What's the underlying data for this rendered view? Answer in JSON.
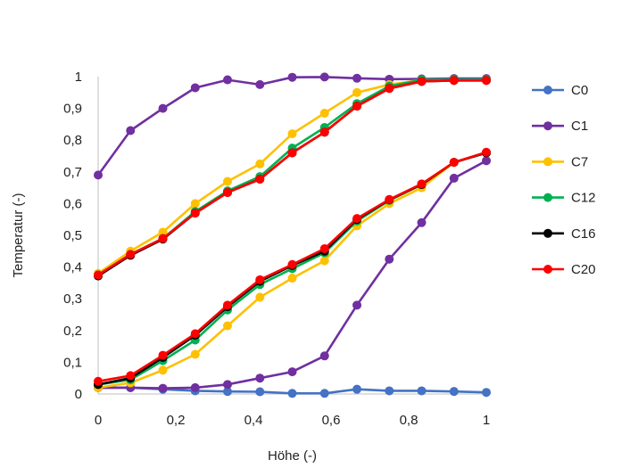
{
  "chart_data": {
    "type": "line",
    "xlabel": "Höhe (-)",
    "ylabel": "Temperatur (-)",
    "xlim": [
      0,
      1
    ],
    "ylim": [
      0,
      1
    ],
    "x_ticks": [
      "0",
      "0,2",
      "0,4",
      "0,6",
      "0,8",
      "1"
    ],
    "y_ticks": [
      "0",
      "0,1",
      "0,2",
      "0,3",
      "0,4",
      "0,5",
      "0,6",
      "0,7",
      "0,8",
      "0,9",
      "1"
    ],
    "grid": false,
    "legend_position": "right",
    "x": [
      0,
      0.0833,
      0.1667,
      0.25,
      0.3333,
      0.4167,
      0.5,
      0.5833,
      0.6667,
      0.75,
      0.8333,
      0.9167,
      1
    ],
    "series": [
      {
        "name": "C0",
        "color": "#4472C4",
        "values": [
          0.02,
          0.02,
          0.015,
          0.01,
          0.008,
          0.007,
          0.002,
          0.002,
          0.015,
          0.01,
          0.01,
          0.008,
          0.005
        ]
      },
      {
        "name": "C1",
        "color": "#7030A0",
        "values": [
          0.69,
          0.83,
          0.9,
          0.965,
          0.99,
          0.975,
          0.998,
          0.999,
          0.995,
          0.992,
          0.993,
          0.994,
          0.994
        ]
      },
      {
        "name": "C1",
        "color": "#7030A0",
        "values": [
          0.02,
          0.02,
          0.018,
          0.02,
          0.03,
          0.05,
          0.07,
          0.12,
          0.28,
          0.425,
          0.54,
          0.68,
          0.735
        ]
      },
      {
        "name": "C7",
        "color": "#FFC000",
        "values": [
          0.38,
          0.45,
          0.51,
          0.6,
          0.67,
          0.725,
          0.82,
          0.885,
          0.95,
          0.975,
          0.99,
          0.99,
          0.99
        ]
      },
      {
        "name": "C7",
        "color": "#FFC000",
        "values": [
          0.02,
          0.035,
          0.075,
          0.125,
          0.215,
          0.305,
          0.365,
          0.42,
          0.53,
          0.6,
          0.65,
          0.73,
          0.76
        ]
      },
      {
        "name": "C12",
        "color": "#00B050",
        "values": [
          0.375,
          0.44,
          0.49,
          0.575,
          0.64,
          0.685,
          0.775,
          0.84,
          0.915,
          0.97,
          0.99,
          0.99,
          0.99
        ]
      },
      {
        "name": "C12",
        "color": "#00B050",
        "values": [
          0.03,
          0.045,
          0.105,
          0.17,
          0.265,
          0.345,
          0.395,
          0.445,
          0.545,
          0.61,
          0.66,
          0.73,
          0.76
        ]
      },
      {
        "name": "C16",
        "color": "#000000",
        "values": [
          0.372,
          0.437,
          0.488,
          0.57,
          0.635,
          0.677,
          0.76,
          0.825,
          0.907,
          0.963,
          0.985,
          0.988,
          0.988
        ]
      },
      {
        "name": "C16",
        "color": "#000000",
        "values": [
          0.03,
          0.05,
          0.115,
          0.185,
          0.275,
          0.355,
          0.405,
          0.45,
          0.55,
          0.612,
          0.66,
          0.73,
          0.76
        ]
      },
      {
        "name": "C20",
        "color": "#FF0000",
        "values": [
          0.375,
          0.44,
          0.49,
          0.57,
          0.635,
          0.677,
          0.76,
          0.825,
          0.907,
          0.963,
          0.985,
          0.988,
          0.988
        ]
      },
      {
        "name": "C20",
        "color": "#FF0000",
        "values": [
          0.04,
          0.058,
          0.122,
          0.19,
          0.28,
          0.36,
          0.408,
          0.458,
          0.553,
          0.613,
          0.662,
          0.73,
          0.762
        ]
      }
    ],
    "legend": [
      {
        "name": "C0",
        "color": "#4472C4"
      },
      {
        "name": "C1",
        "color": "#7030A0"
      },
      {
        "name": "C7",
        "color": "#FFC000"
      },
      {
        "name": "C12",
        "color": "#00B050"
      },
      {
        "name": "C16",
        "color": "#000000"
      },
      {
        "name": "C20",
        "color": "#FF0000"
      }
    ]
  }
}
